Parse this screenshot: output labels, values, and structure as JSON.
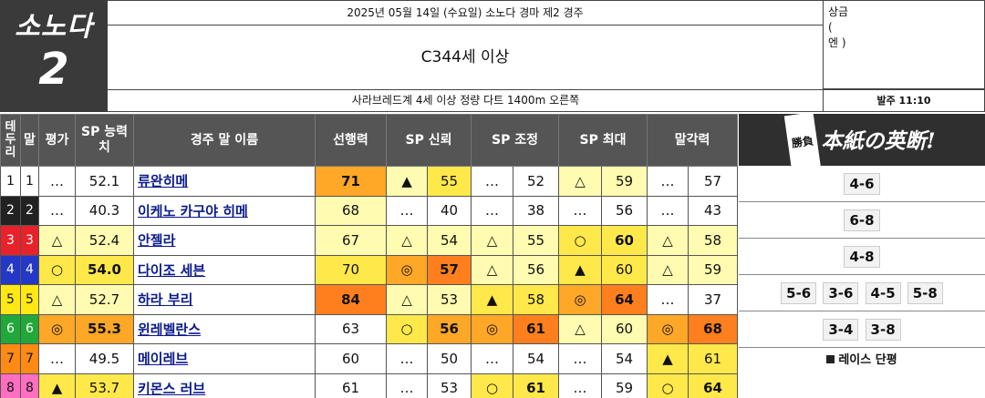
{
  "header": {
    "venue": "소노다",
    "race_number": "2",
    "date_line": "2025년 05월 14일 (수요일) 소노다 경마 제2 경주",
    "race_title": "C344세 이상",
    "conditions": "사라브레드계 4세 이상 정량 다트 1400m 오른쪽",
    "post_time": "발주 11:10",
    "prize_label": "상금",
    "prize_open": "(",
    "prize_unit": "엔 )"
  },
  "table": {
    "headers": {
      "gate": "테두리",
      "num": "말",
      "eval": "평가",
      "sp_ability": "SP 능력치",
      "name": "경주 말 이름",
      "leading": "선행력",
      "sp_trust": "SP 신뢰",
      "sp_adjust": "SP 조정",
      "sp_max": "SP 최대",
      "closing": "말각력"
    },
    "rows": [
      {
        "gate": "1",
        "num": "1",
        "eval": "…",
        "sp": "52.1",
        "name": "류완히메",
        "lead": "71",
        "t_mark": "▲",
        "t_val": "55",
        "a_mark": "…",
        "a_val": "52",
        "m_mark": "△",
        "m_val": "59",
        "c_mark": "…",
        "c_val": "57"
      },
      {
        "gate": "2",
        "num": "2",
        "eval": "…",
        "sp": "40.3",
        "name": "이케노 카구야 히메",
        "lead": "68",
        "t_mark": "…",
        "t_val": "40",
        "a_mark": "…",
        "a_val": "38",
        "m_mark": "…",
        "m_val": "56",
        "c_mark": "…",
        "c_val": "43"
      },
      {
        "gate": "3",
        "num": "3",
        "eval": "△",
        "sp": "52.4",
        "name": "안젤라",
        "lead": "67",
        "t_mark": "△",
        "t_val": "54",
        "a_mark": "△",
        "a_val": "55",
        "m_mark": "○",
        "m_val": "60",
        "c_mark": "△",
        "c_val": "58"
      },
      {
        "gate": "4",
        "num": "4",
        "eval": "○",
        "sp": "54.0",
        "name": "다이조 세븐",
        "lead": "70",
        "t_mark": "◎",
        "t_val": "57",
        "a_mark": "△",
        "a_val": "56",
        "m_mark": "▲",
        "m_val": "60",
        "c_mark": "△",
        "c_val": "59"
      },
      {
        "gate": "5",
        "num": "5",
        "eval": "△",
        "sp": "52.7",
        "name": "하라 부리",
        "lead": "84",
        "t_mark": "△",
        "t_val": "53",
        "a_mark": "▲",
        "a_val": "58",
        "m_mark": "◎",
        "m_val": "64",
        "c_mark": "…",
        "c_val": "37"
      },
      {
        "gate": "6",
        "num": "6",
        "eval": "◎",
        "sp": "55.3",
        "name": "윈레벨란스",
        "lead": "63",
        "t_mark": "○",
        "t_val": "56",
        "a_mark": "◎",
        "a_val": "61",
        "m_mark": "△",
        "m_val": "60",
        "c_mark": "◎",
        "c_val": "68"
      },
      {
        "gate": "7",
        "num": "7",
        "eval": "…",
        "sp": "49.5",
        "name": "메이레브",
        "lead": "60",
        "t_mark": "…",
        "t_val": "50",
        "a_mark": "…",
        "a_val": "54",
        "m_mark": "…",
        "m_val": "54",
        "c_mark": "▲",
        "c_val": "61"
      },
      {
        "gate": "8",
        "num": "8",
        "eval": "▲",
        "sp": "53.7",
        "name": "키몬스 러브",
        "lead": "61",
        "t_mark": "…",
        "t_val": "53",
        "a_mark": "○",
        "a_val": "61",
        "m_mark": "…",
        "m_val": "59",
        "c_mark": "○",
        "c_val": "64"
      }
    ]
  },
  "panel": {
    "title": "本紙の英断!",
    "seal": "勝負",
    "picks": [
      [
        "4-6"
      ],
      [
        "6-8"
      ],
      [
        "4-8"
      ],
      [
        "5-6",
        "3-6",
        "4-5",
        "5-8"
      ],
      [
        "3-4",
        "3-8"
      ]
    ],
    "footer": "레이스 단평"
  },
  "colors": {
    "gate_bg": [
      "#ffffff",
      "#222222",
      "#e8222a",
      "#2438c8",
      "#ffe814",
      "#22a83a",
      "#ff8a14",
      "#ff6ec0"
    ],
    "gate_fg": [
      "#111111",
      "#ffffff",
      "#ffffff",
      "#ffffff",
      "#111111",
      "#ffffff",
      "#111111",
      "#111111"
    ],
    "header_dark": "#3a3a3a",
    "table_header": "#555555",
    "name_link": "#0a1a8c"
  }
}
